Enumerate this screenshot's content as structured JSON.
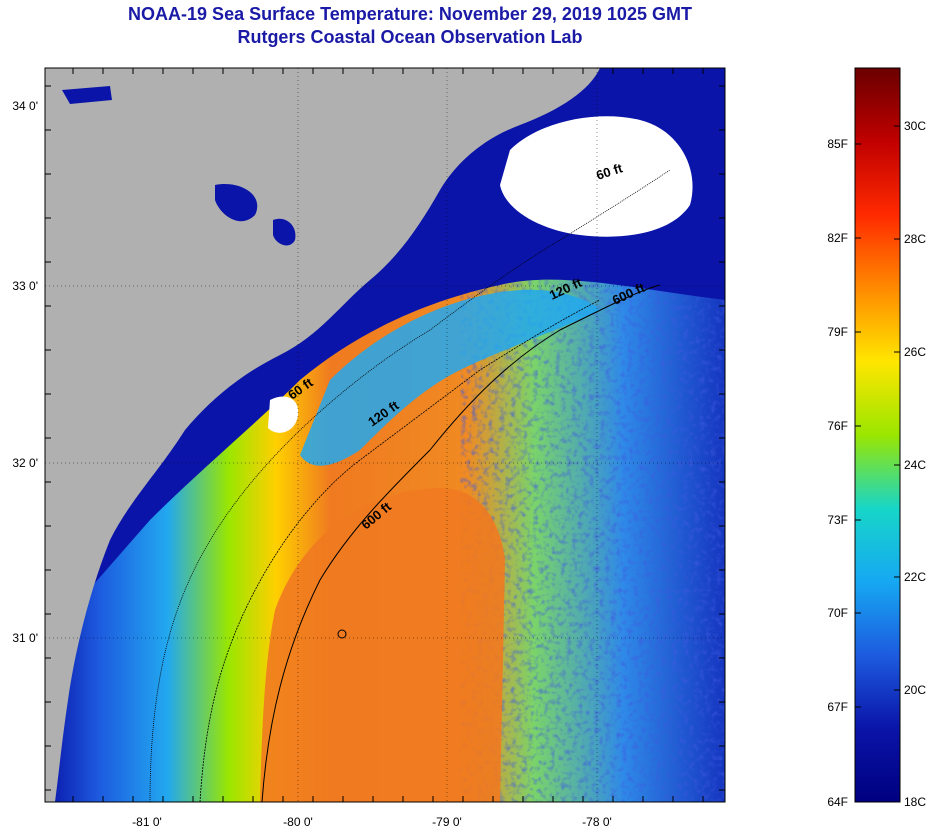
{
  "title_line1": "NOAA-19 Sea Surface Temperature:  November 29, 2019 1025 GMT",
  "title_line2": "Rutgers Coastal Ocean Observation Lab",
  "lat_labels": [
    "34 0'",
    "33 0'",
    "32 0'",
    "31 0'"
  ],
  "lon_labels": [
    "-81 0'",
    "-80 0'",
    "-79 0'",
    "-78 0'"
  ],
  "contours": [
    "60 ft",
    "120 ft",
    "600 ft",
    "60 ft",
    "120 ft",
    "600 ft"
  ],
  "colorbar": {
    "fahrenheit": [
      "85F",
      "82F",
      "79F",
      "76F",
      "73F",
      "70F",
      "67F",
      "64F"
    ],
    "celsius": [
      "30C",
      "28C",
      "26C",
      "24C",
      "22C",
      "20C",
      "18C"
    ],
    "colors": [
      "#6a0000",
      "#c00000",
      "#ff2a00",
      "#ff8a00",
      "#ffe600",
      "#9ae600",
      "#17d6c8",
      "#16a8f2",
      "#1d5bdf",
      "#0a14a8",
      "#000080"
    ]
  },
  "colors": {
    "land": "#b0b0b0",
    "cold_water": "#0a14a8",
    "cloud": "#ffffff",
    "gulf_stream": "#f07a20",
    "title": "#1a1aa6"
  }
}
